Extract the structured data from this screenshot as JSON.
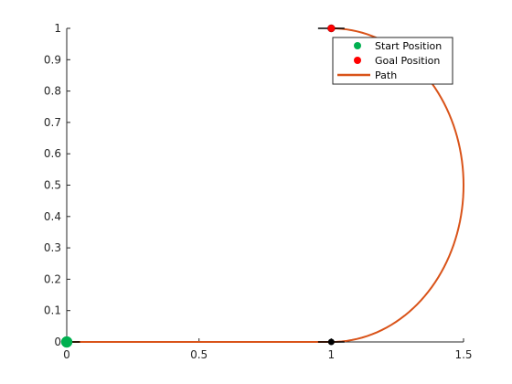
{
  "chart_data": {
    "type": "line",
    "title": "",
    "xlabel": "",
    "ylabel": "",
    "xlim": [
      0,
      1.5
    ],
    "ylim": [
      0,
      1
    ],
    "grid": false,
    "legend_position": "top-right",
    "xticks": [
      0,
      0.5,
      1,
      1.5
    ],
    "xtick_labels": [
      "0",
      "0.5",
      "1",
      "1.5"
    ],
    "yticks": [
      0,
      0.1,
      0.2,
      0.3,
      0.4,
      0.5,
      0.6,
      0.7,
      0.8,
      0.9,
      1
    ],
    "ytick_labels": [
      "0",
      "0.1",
      "0.2",
      "0.3",
      "0.4",
      "0.5",
      "0.6",
      "0.7",
      "0.8",
      "0.9",
      "1"
    ],
    "series": [
      {
        "name": "Path",
        "kind": "line",
        "color": "#D95319",
        "segments": [
          {
            "type": "line",
            "from": [
              0,
              0
            ],
            "to": [
              1,
              0
            ]
          },
          {
            "type": "arc",
            "center": [
              1,
              0.5
            ],
            "radius": 0.5,
            "start_angle_deg": -90,
            "end_angle_deg": 90
          }
        ]
      },
      {
        "name": "Start Position",
        "kind": "marker",
        "color": "#00B050",
        "points": [
          [
            0,
            0
          ]
        ]
      },
      {
        "name": "Goal Position",
        "kind": "marker",
        "color": "#FF0000",
        "points": [
          [
            1,
            1
          ]
        ]
      }
    ],
    "waypoint_marker": {
      "color": "#000000",
      "points": [
        [
          1,
          0
        ]
      ]
    },
    "heading_segments": [
      {
        "from": [
          0,
          0
        ],
        "to": [
          0.05,
          0
        ]
      },
      {
        "from": [
          0.95,
          1
        ],
        "to": [
          1.05,
          1
        ]
      },
      {
        "from": [
          0.95,
          0
        ],
        "to": [
          1.05,
          0
        ]
      }
    ]
  },
  "legend": {
    "items": [
      {
        "label": "Start Position",
        "kind": "marker",
        "color": "#00B050"
      },
      {
        "label": "Goal Position",
        "kind": "marker",
        "color": "#FF0000"
      },
      {
        "label": "Path",
        "kind": "line",
        "color": "#D95319"
      }
    ]
  }
}
